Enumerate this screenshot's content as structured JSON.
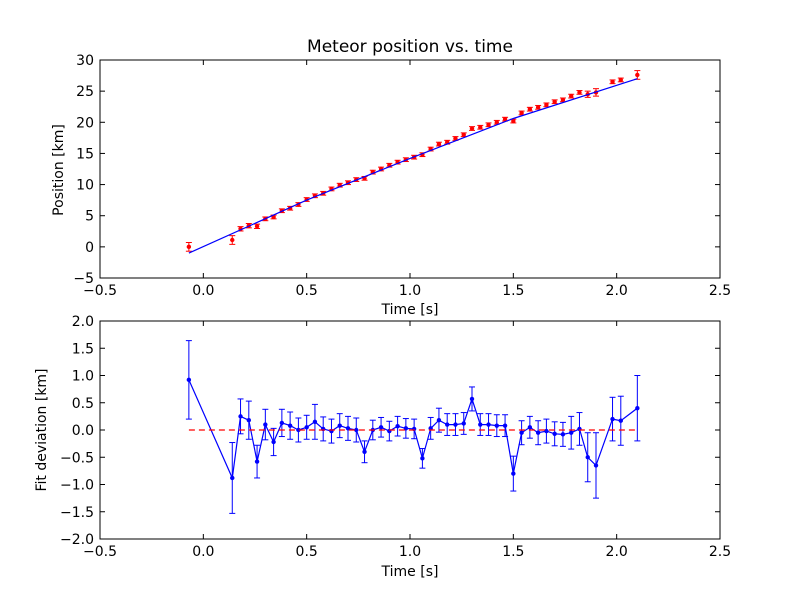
{
  "colors": {
    "fit": "#0000ff",
    "data": "#ff0000",
    "axes": "#000000"
  },
  "chart_data": [
    {
      "type": "scatter",
      "title": "Meteor position vs. time",
      "xlabel": "Time [s]",
      "ylabel": "Position [km]",
      "xlim": [
        -0.5,
        2.5
      ],
      "ylim": [
        -5,
        30
      ],
      "xticks": [
        "−0.5",
        "0.0",
        "0.5",
        "1.0",
        "1.5",
        "2.0",
        "2.5"
      ],
      "yticks": [
        "−5",
        "0",
        "5",
        "10",
        "15",
        "20",
        "25",
        "30"
      ],
      "grid": false,
      "series": [
        {
          "kind": "errorbar",
          "color": "#ff0000",
          "x": [
            -0.07,
            0.14,
            0.18,
            0.22,
            0.26,
            0.3,
            0.34,
            0.38,
            0.42,
            0.46,
            0.5,
            0.54,
            0.58,
            0.62,
            0.66,
            0.7,
            0.74,
            0.78,
            0.82,
            0.86,
            0.9,
            0.94,
            0.98,
            1.02,
            1.06,
            1.1,
            1.14,
            1.18,
            1.22,
            1.26,
            1.3,
            1.34,
            1.38,
            1.42,
            1.46,
            1.5,
            1.54,
            1.58,
            1.62,
            1.66,
            1.7,
            1.74,
            1.78,
            1.82,
            1.86,
            1.9,
            1.98,
            2.02,
            2.1
          ],
          "y": [
            0.0,
            1.1,
            2.9,
            3.4,
            3.3,
            4.5,
            4.8,
            5.8,
            6.2,
            6.8,
            7.6,
            8.2,
            8.6,
            9.3,
            9.9,
            10.3,
            10.8,
            11.0,
            12.0,
            12.5,
            13.1,
            13.6,
            14.0,
            14.4,
            14.8,
            15.7,
            16.5,
            16.8,
            17.4,
            18.0,
            19.0,
            19.2,
            19.6,
            20.0,
            20.5,
            20.2,
            21.5,
            22.1,
            22.4,
            22.8,
            23.3,
            23.6,
            24.2,
            24.8,
            24.5,
            24.8,
            26.5,
            26.8,
            27.6
          ],
          "yerr": [
            0.7,
            0.7,
            0.35,
            0.35,
            0.35,
            0.3,
            0.3,
            0.3,
            0.3,
            0.3,
            0.3,
            0.3,
            0.3,
            0.3,
            0.3,
            0.3,
            0.3,
            0.3,
            0.3,
            0.3,
            0.3,
            0.3,
            0.3,
            0.3,
            0.3,
            0.3,
            0.3,
            0.3,
            0.3,
            0.3,
            0.3,
            0.3,
            0.3,
            0.3,
            0.3,
            0.3,
            0.3,
            0.3,
            0.3,
            0.3,
            0.3,
            0.3,
            0.3,
            0.3,
            0.5,
            0.6,
            0.3,
            0.3,
            0.7
          ]
        },
        {
          "kind": "line",
          "color": "#0000ff",
          "x": [
            -0.07,
            0.5,
            1.0,
            1.5,
            2.1
          ],
          "y": [
            -1.0,
            7.5,
            14.2,
            20.6,
            27.0
          ]
        }
      ]
    },
    {
      "type": "line",
      "title": "",
      "xlabel": "Time [s]",
      "ylabel": "Fit deviation [km]",
      "xlim": [
        -0.5,
        2.5
      ],
      "ylim": [
        -2.0,
        2.0
      ],
      "xticks": [
        "−0.5",
        "0.0",
        "0.5",
        "1.0",
        "1.5",
        "2.0",
        "2.5"
      ],
      "yticks": [
        "−2.0",
        "−1.5",
        "−1.0",
        "−0.5",
        "0.0",
        "0.5",
        "1.0",
        "1.5",
        "2.0"
      ],
      "grid": false,
      "series": [
        {
          "kind": "errorbar-line",
          "color": "#0000ff",
          "x": [
            -0.07,
            0.14,
            0.18,
            0.22,
            0.26,
            0.3,
            0.34,
            0.38,
            0.42,
            0.46,
            0.5,
            0.54,
            0.58,
            0.62,
            0.66,
            0.7,
            0.74,
            0.78,
            0.82,
            0.86,
            0.9,
            0.94,
            0.98,
            1.02,
            1.06,
            1.1,
            1.14,
            1.18,
            1.22,
            1.26,
            1.3,
            1.34,
            1.38,
            1.42,
            1.46,
            1.5,
            1.54,
            1.58,
            1.62,
            1.66,
            1.7,
            1.74,
            1.78,
            1.82,
            1.86,
            1.9,
            1.98,
            2.02,
            2.1
          ],
          "y": [
            0.92,
            -0.88,
            0.25,
            0.18,
            -0.58,
            0.1,
            -0.22,
            0.13,
            0.08,
            0.0,
            0.05,
            0.15,
            0.02,
            -0.02,
            0.08,
            0.03,
            0.0,
            -0.4,
            0.0,
            0.05,
            -0.02,
            0.07,
            0.03,
            0.02,
            -0.52,
            0.03,
            0.18,
            0.1,
            0.1,
            0.12,
            0.57,
            0.1,
            0.1,
            0.08,
            0.08,
            -0.8,
            -0.05,
            0.05,
            -0.05,
            -0.02,
            -0.07,
            -0.08,
            -0.05,
            0.02,
            -0.5,
            -0.65,
            0.2,
            0.17,
            0.4
          ],
          "yerr": [
            0.72,
            0.65,
            0.32,
            0.35,
            0.3,
            0.28,
            0.25,
            0.25,
            0.25,
            0.22,
            0.22,
            0.32,
            0.22,
            0.22,
            0.22,
            0.22,
            0.22,
            0.2,
            0.18,
            0.18,
            0.18,
            0.18,
            0.18,
            0.18,
            0.18,
            0.2,
            0.22,
            0.2,
            0.2,
            0.2,
            0.22,
            0.2,
            0.2,
            0.2,
            0.2,
            0.32,
            0.22,
            0.2,
            0.22,
            0.22,
            0.22,
            0.22,
            0.3,
            0.3,
            0.45,
            0.6,
            0.4,
            0.45,
            0.6
          ]
        },
        {
          "kind": "reference-line",
          "color": "#ff0000",
          "dashed": true,
          "x": [
            -0.07,
            2.1
          ],
          "y": [
            0.0,
            0.0
          ]
        }
      ]
    }
  ]
}
